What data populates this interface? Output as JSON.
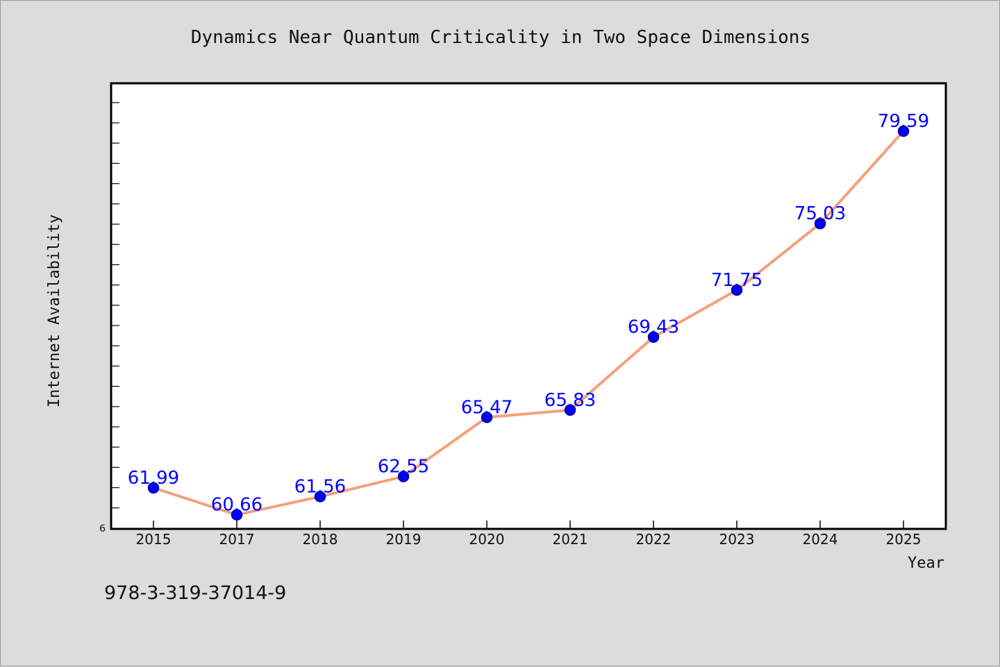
{
  "footer_text": "978-3-319-37014-9",
  "colors": {
    "background": "#dcdcdc",
    "plot_background": "#ffffff",
    "line": "#f4a07a",
    "marker_fill": "#0000ff",
    "marker_stroke": "#00008b",
    "data_label": "#0000ff"
  },
  "chart_data": {
    "type": "line",
    "title": "Dynamics Near Quantum Criticality in Two Space Dimensions",
    "xlabel": "Year",
    "ylabel": "Internet Availability",
    "categories": [
      "2015",
      "2017",
      "2018",
      "2019",
      "2020",
      "2021",
      "2022",
      "2023",
      "2024",
      "2025"
    ],
    "series": [
      {
        "values": [
          61.99,
          60.66,
          61.56,
          62.55,
          65.47,
          65.83,
          69.43,
          71.75,
          75.03,
          79.59
        ],
        "data_labels": [
          "61.99",
          "60.66",
          "61.56",
          "62.55",
          "65.47",
          "65.83",
          "69.43",
          "71.75",
          "75.03",
          "79.59"
        ]
      }
    ],
    "y_tick_labels": [
      "6"
    ],
    "ylim": [
      60,
      82
    ],
    "y_minor_tick_step": 1,
    "grid": false,
    "legend": "none",
    "markers": true
  }
}
